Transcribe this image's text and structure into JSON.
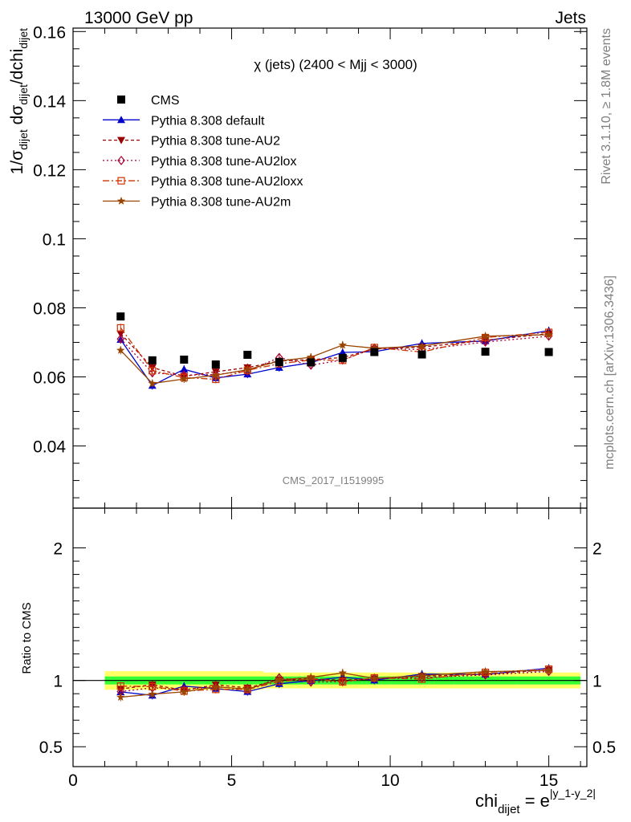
{
  "header": {
    "energy_label": "13000 GeV pp",
    "category_label": "Jets"
  },
  "side_labels": {
    "rivet": "Rivet 3.1.10, ≥ 1.8M events",
    "mcplots": "mcplots.cern.ch [arXiv:1306.3436]"
  },
  "watermark": "CMS_2017_I1519995",
  "chart_data": {
    "type": "line",
    "title": "χ (jets) (2400 < Mjj < 3000)",
    "xlabel": {
      "main": "chi",
      "sub": "dijet",
      "eq": " = e",
      "sup": "|y_1-y_2|"
    },
    "ylabel": {
      "p1": "1/σ",
      "s1": "dijet",
      "p2": " dσ",
      "s2": "dijet",
      "p3": "/dchi",
      "s3": "dijet"
    },
    "ratio_ylabel": "Ratio to CMS",
    "xlim": [
      0,
      16.2
    ],
    "ylim": [
      0.022,
      0.161
    ],
    "ratio_ylim": [
      0.35,
      2.3
    ],
    "x_ticks": [
      0,
      5,
      10,
      15
    ],
    "x_tick_labels": [
      "0",
      "5",
      "10",
      "15"
    ],
    "y_ticks": [
      0.04,
      0.06,
      0.08,
      0.1,
      0.12,
      0.14,
      0.16
    ],
    "y_tick_labels": [
      "0.04",
      "0.06",
      "0.08",
      "0.1",
      "0.12",
      "0.14",
      "0.16"
    ],
    "ratio_ticks": [
      0.5,
      1,
      2
    ],
    "ratio_tick_labels": [
      "0.5",
      "1",
      "2"
    ],
    "x": [
      1.5,
      2.5,
      3.5,
      4.5,
      5.5,
      6.5,
      7.5,
      8.5,
      9.5,
      11.0,
      13.0,
      15.0
    ],
    "bin_edges": [
      1,
      2,
      3,
      4,
      5,
      6,
      7,
      8,
      9,
      10,
      12,
      14,
      16
    ],
    "data": {
      "name": "CMS",
      "values": [
        0.0775,
        0.0648,
        0.065,
        0.0636,
        0.0664,
        0.0643,
        0.0642,
        0.0655,
        0.0672,
        0.0665,
        0.0673,
        0.0672
      ],
      "color": "#000000"
    },
    "band_inner": [
      0.03,
      0.03,
      0.03,
      0.03,
      0.03,
      0.03,
      0.03,
      0.03,
      0.03,
      0.03,
      0.03,
      0.03
    ],
    "band_outer": [
      0.07,
      0.07,
      0.07,
      0.07,
      0.07,
      0.06,
      0.06,
      0.06,
      0.06,
      0.06,
      0.06,
      0.06
    ],
    "band_inner_color": "#33ff33",
    "band_outer_color": "#ffff66",
    "series": [
      {
        "name": "Pythia 8.308 default",
        "color": "#0000cc",
        "dash": "",
        "marker": "triangle-up",
        "values": [
          0.0708,
          0.0575,
          0.0622,
          0.0597,
          0.0608,
          0.0627,
          0.0641,
          0.0671,
          0.0673,
          0.0697,
          0.0704,
          0.0734
        ]
      },
      {
        "name": "Pythia 8.308 tune-AU2",
        "color": "#990000",
        "dash": "4,3",
        "marker": "triangle-down",
        "values": [
          0.0725,
          0.0627,
          0.0602,
          0.0615,
          0.0627,
          0.0646,
          0.065,
          0.0656,
          0.0681,
          0.0686,
          0.0706,
          0.0725
        ]
      },
      {
        "name": "Pythia 8.308 tune-AU2lox",
        "color": "#aa0033",
        "dash": "2,3",
        "marker": "diamond-open",
        "values": [
          0.071,
          0.0612,
          0.0605,
          0.0607,
          0.0617,
          0.0656,
          0.0634,
          0.0649,
          0.0683,
          0.0679,
          0.0701,
          0.0718
        ]
      },
      {
        "name": "Pythia 8.308 tune-AU2loxx",
        "color": "#cc3300",
        "dash": "8,3,2,3",
        "marker": "square-open",
        "values": [
          0.0742,
          0.0618,
          0.0598,
          0.0593,
          0.0619,
          0.0638,
          0.0649,
          0.0648,
          0.0685,
          0.0672,
          0.0714,
          0.0729
        ]
      },
      {
        "name": "Pythia 8.308 tune-AU2m",
        "color": "#994400",
        "dash": "",
        "marker": "star",
        "values": [
          0.0677,
          0.0581,
          0.0594,
          0.0605,
          0.0621,
          0.0646,
          0.0657,
          0.0692,
          0.0683,
          0.0689,
          0.0718,
          0.0722
        ]
      }
    ]
  }
}
